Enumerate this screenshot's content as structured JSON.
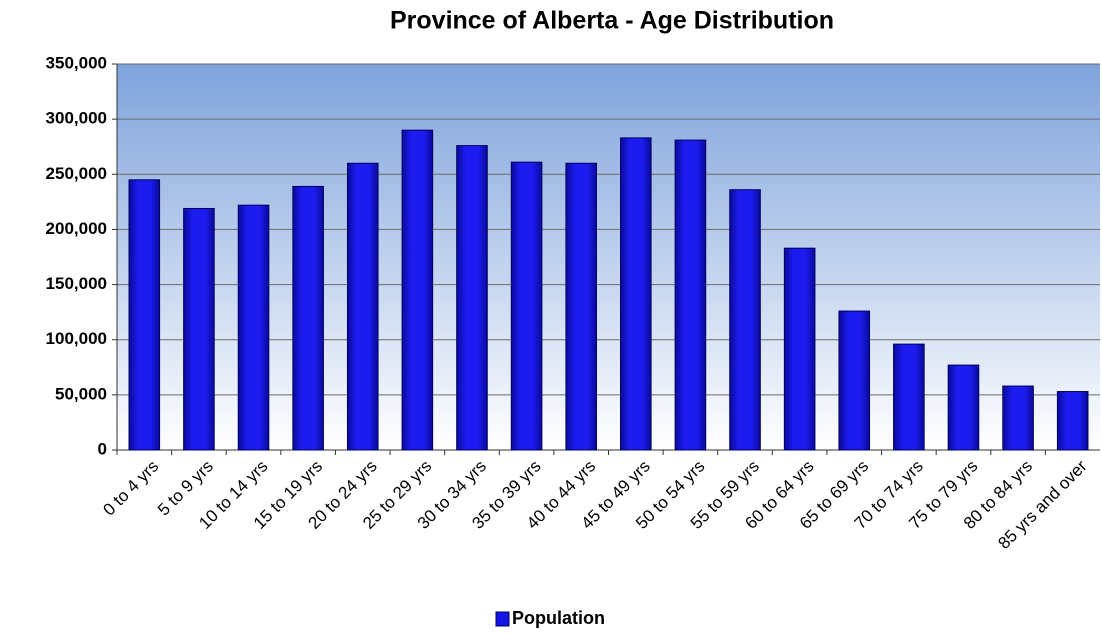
{
  "chart_data": {
    "type": "bar",
    "title": "Province of Alberta - Age Distribution",
    "categories": [
      "0 to 4 yrs",
      "5 to 9 yrs",
      "10 to 14 yrs",
      "15 to 19 yrs",
      "20 to 24 yrs",
      "25 to 29 yrs",
      "30 to 34 yrs",
      "35 to 39 yrs",
      "40 to 44 yrs",
      "45 to 49 yrs",
      "50 to 54 yrs",
      "55 to 59 yrs",
      "60 to 64 yrs",
      "65 to 69 yrs",
      "70 to 74 yrs",
      "75 to 79 yrs",
      "80 to 84 yrs",
      "85 yrs and over"
    ],
    "series": [
      {
        "name": "Population",
        "color": "#1414e6",
        "values": [
          245000,
          219000,
          222000,
          239000,
          260000,
          290000,
          276000,
          261000,
          260000,
          283000,
          281000,
          236000,
          183000,
          126000,
          96000,
          77000,
          58000,
          53000
        ]
      }
    ],
    "ylim": [
      0,
      350000
    ],
    "yticks": [
      0,
      {
        "value": 50000,
        "label": "50,000"
      },
      {
        "value": 100000,
        "label": "100,000"
      },
      {
        "value": 150000,
        "label": "150,000"
      },
      {
        "value": 200000,
        "label": "200,000"
      },
      {
        "value": 250000,
        "label": "250,000"
      },
      {
        "value": 300000,
        "label": "300,000"
      },
      {
        "value": 350000,
        "label": "350,000"
      }
    ],
    "grid": true,
    "legend": "bottom"
  }
}
